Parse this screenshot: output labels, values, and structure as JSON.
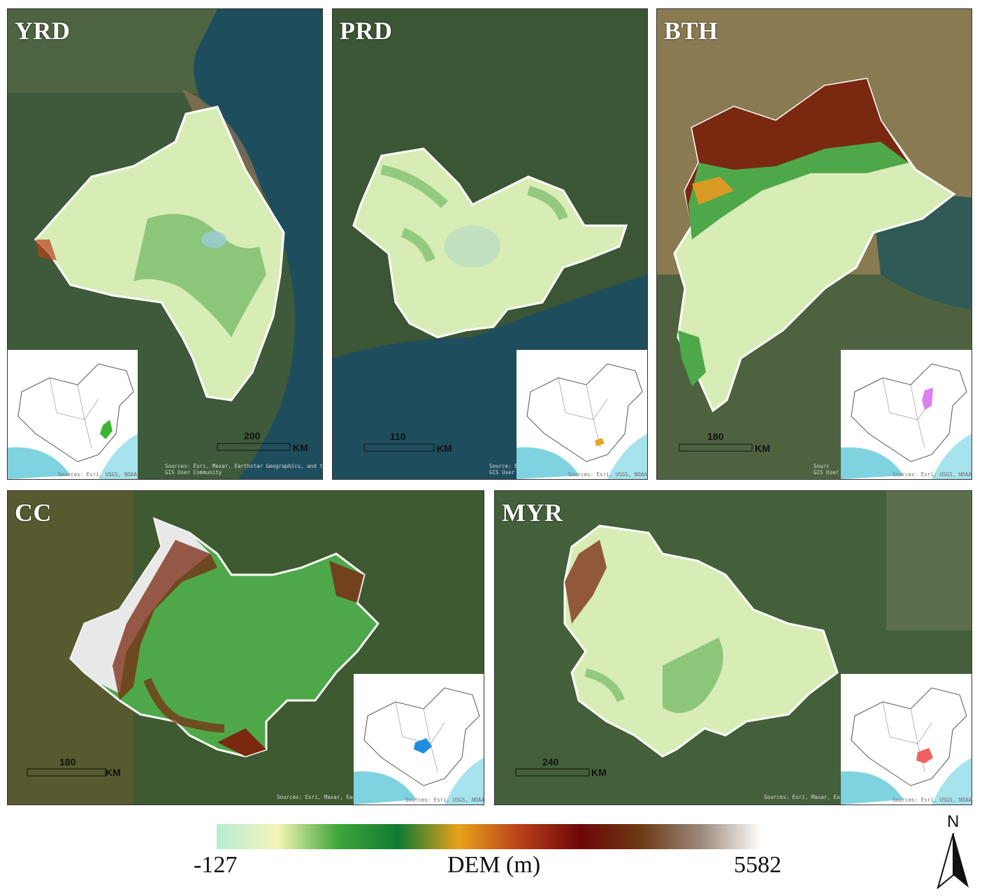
{
  "panels": [
    {
      "id": "yrd",
      "label": "YRD",
      "scale": {
        "value": "200",
        "unit": "KM"
      },
      "credit": "Sources: Esri, Maxar, Earthstar Geographics, and the\nGIS User Community",
      "inset": {
        "credit": "Sources: Esri, USGS, NOAA",
        "highlight_color": "#3cb531"
      }
    },
    {
      "id": "prd",
      "label": "PRD",
      "scale": {
        "value": "110",
        "unit": "KM"
      },
      "credit": "Source: E\nGIS User",
      "inset": {
        "credit": "Sources: Esri, USGS, NOAA",
        "highlight_color": "#e9a21b"
      }
    },
    {
      "id": "bth",
      "label": "BTH",
      "scale": {
        "value": "180",
        "unit": "KM"
      },
      "credit": "Sourc\nGIS User",
      "inset": {
        "credit": "Sources: Esri, USGS, NOAA",
        "highlight_color": "#dc7ef0"
      }
    },
    {
      "id": "cc",
      "label": "CC",
      "scale": {
        "value": "180",
        "unit": "KM"
      },
      "credit": "Sources: Esri, Maxar, Earths",
      "inset": {
        "credit": "Sources: Esri, USGS, NOAA",
        "highlight_color": "#1f8ee0"
      }
    },
    {
      "id": "myr",
      "label": "MYR",
      "scale": {
        "value": "240",
        "unit": "KM"
      },
      "credit": "Sources: Esri, Maxar, Ea",
      "inset": {
        "credit": "Sources: Esri, USGS, NOAA",
        "highlight_color": "#f0605e"
      }
    }
  ],
  "legend": {
    "title": "DEM (m)",
    "min": "-127",
    "max": "5582",
    "colors": [
      "#b6ecd6",
      "#f5f5b8",
      "#3fa63a",
      "#0f7a32",
      "#e9a21b",
      "#b8401a",
      "#6e0707",
      "#6b3a14",
      "#9c8a7d",
      "#ffffff"
    ]
  },
  "north_arrow": {
    "label": "N"
  },
  "palette": {
    "low": "#d8ecb6",
    "green": "#4ea84a",
    "orange": "#d89a25",
    "brown": "#7a2810",
    "snow": "#e8e8e8",
    "sea": "#1e4d5e",
    "land": "#3e5a3a",
    "boundary": "#ffffff"
  }
}
